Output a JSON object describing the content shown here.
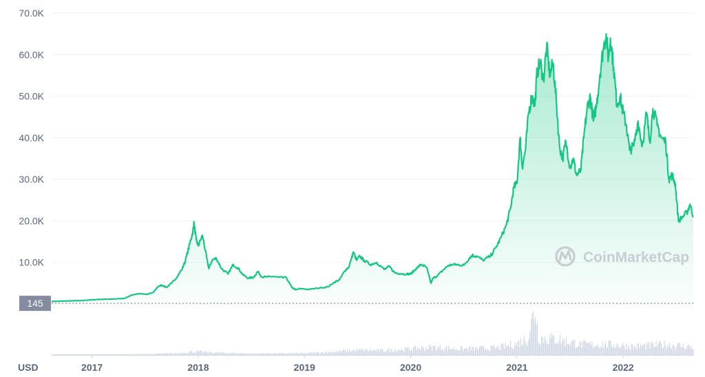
{
  "chart_data": {
    "type": "area",
    "title": "",
    "xlabel": "",
    "ylabel": "",
    "currency_label": "USD",
    "watermark": "CoinMarketCap",
    "baseline_label": "145",
    "baseline_value": 145,
    "xlim": [
      2016.62,
      2022.66
    ],
    "ylim": [
      0,
      70000
    ],
    "y_ticks": [
      {
        "value": 10000,
        "label": "10.0K"
      },
      {
        "value": 20000,
        "label": "20.0K"
      },
      {
        "value": 30000,
        "label": "30.0K"
      },
      {
        "value": 40000,
        "label": "40.0K"
      },
      {
        "value": 50000,
        "label": "50.0K"
      },
      {
        "value": 60000,
        "label": "60.0K"
      },
      {
        "value": 70000,
        "label": "70.0K"
      }
    ],
    "x_ticks": [
      {
        "value": 2017,
        "label": "2017"
      },
      {
        "value": 2018,
        "label": "2018"
      },
      {
        "value": 2019,
        "label": "2019"
      },
      {
        "value": 2020,
        "label": "2020"
      },
      {
        "value": 2021,
        "label": "2021"
      },
      {
        "value": 2022,
        "label": "2022"
      }
    ],
    "grid": true,
    "line_color": "#16c784",
    "price_series": {
      "x": [
        2016.62,
        2016.75,
        2016.9,
        2017.0,
        2017.1,
        2017.2,
        2017.3,
        2017.38,
        2017.45,
        2017.52,
        2017.58,
        2017.62,
        2017.66,
        2017.7,
        2017.75,
        2017.8,
        2017.85,
        2017.88,
        2017.92,
        2017.95,
        2017.96,
        2017.98,
        2018.0,
        2018.04,
        2018.08,
        2018.1,
        2018.13,
        2018.17,
        2018.22,
        2018.28,
        2018.33,
        2018.38,
        2018.42,
        2018.47,
        2018.52,
        2018.56,
        2018.6,
        2018.65,
        2018.7,
        2018.76,
        2018.83,
        2018.88,
        2018.92,
        2018.96,
        2019.05,
        2019.15,
        2019.22,
        2019.28,
        2019.33,
        2019.38,
        2019.42,
        2019.46,
        2019.49,
        2019.52,
        2019.56,
        2019.62,
        2019.68,
        2019.75,
        2019.8,
        2019.85,
        2019.9,
        2019.96,
        2020.0,
        2020.05,
        2020.1,
        2020.15,
        2020.19,
        2020.21,
        2020.25,
        2020.3,
        2020.35,
        2020.4,
        2020.45,
        2020.5,
        2020.55,
        2020.58,
        2020.62,
        2020.68,
        2020.75,
        2020.8,
        2020.85,
        2020.9,
        2020.94,
        2020.97,
        2021.0,
        2021.03,
        2021.05,
        2021.08,
        2021.11,
        2021.14,
        2021.17,
        2021.19,
        2021.22,
        2021.25,
        2021.28,
        2021.31,
        2021.34,
        2021.37,
        2021.4,
        2021.43,
        2021.46,
        2021.5,
        2021.53,
        2021.56,
        2021.6,
        2021.63,
        2021.66,
        2021.69,
        2021.72,
        2021.75,
        2021.78,
        2021.81,
        2021.84,
        2021.86,
        2021.88,
        2021.91,
        2021.94,
        2021.97,
        2022.0,
        2022.03,
        2022.06,
        2022.1,
        2022.14,
        2022.18,
        2022.22,
        2022.25,
        2022.28,
        2022.32,
        2022.36,
        2022.4,
        2022.43,
        2022.46,
        2022.49,
        2022.52,
        2022.56,
        2022.6,
        2022.63,
        2022.66
      ],
      "y": [
        600,
        700,
        800,
        1000,
        1100,
        1200,
        1300,
        2200,
        2500,
        2300,
        2800,
        4200,
        4500,
        4000,
        5000,
        6500,
        8500,
        10500,
        14500,
        17500,
        19500,
        15500,
        14000,
        16500,
        11000,
        8500,
        10500,
        11000,
        8500,
        7200,
        9500,
        8500,
        7000,
        6200,
        6400,
        7800,
        6500,
        6500,
        6600,
        6400,
        6300,
        4000,
        3400,
        3700,
        3500,
        3900,
        4100,
        5200,
        5800,
        8000,
        9000,
        12500,
        10500,
        11500,
        10500,
        9500,
        10000,
        8300,
        9000,
        7500,
        7300,
        7200,
        7200,
        8500,
        9500,
        8800,
        5000,
        6200,
        6800,
        8000,
        9200,
        9500,
        9400,
        9300,
        11000,
        11700,
        11500,
        10500,
        11500,
        13500,
        16000,
        19000,
        23000,
        28000,
        29000,
        40000,
        33000,
        37000,
        46000,
        50000,
        48000,
        56000,
        58000,
        54000,
        62000,
        55000,
        58000,
        49000,
        38000,
        35000,
        39000,
        33000,
        35000,
        31000,
        32000,
        40000,
        47000,
        50000,
        44000,
        48000,
        55000,
        61000,
        65000,
        59000,
        64000,
        57000,
        48000,
        50000,
        46000,
        43000,
        37000,
        38000,
        44000,
        38000,
        46000,
        39000,
        47000,
        43000,
        40000,
        39000,
        30000,
        31000,
        29000,
        20000,
        21000,
        22000,
        24000,
        21000
      ]
    },
    "volume_series": {
      "x": [
        2016.62,
        2017.0,
        2017.5,
        2017.8,
        2017.95,
        2018.1,
        2018.5,
        2019.0,
        2019.3,
        2019.5,
        2019.7,
        2020.0,
        2020.2,
        2020.5,
        2020.8,
        2021.0,
        2021.1,
        2021.17,
        2021.2,
        2021.4,
        2021.6,
        2021.9,
        2022.1,
        2022.4,
        2022.5,
        2022.66
      ],
      "y": [
        0.02,
        0.03,
        0.05,
        0.1,
        0.2,
        0.15,
        0.08,
        0.1,
        0.2,
        0.28,
        0.25,
        0.35,
        0.45,
        0.35,
        0.4,
        0.65,
        1.0,
        2.8,
        1.0,
        0.9,
        0.6,
        0.6,
        0.5,
        0.6,
        0.55,
        0.45
      ],
      "vmax": 3.0
    }
  }
}
